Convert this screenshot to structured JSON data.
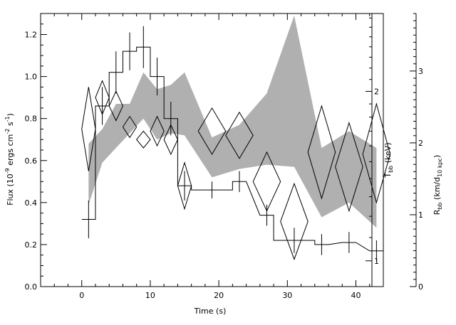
{
  "chart_data": {
    "type": "scatter",
    "title": "",
    "xlabel": "Time (s)",
    "ylabel": "Flux (10^-9 ergs cm^-2 s^-1)",
    "ylabel_parts": [
      "Flux (10",
      "-9",
      " ergs cm",
      "-2",
      " s",
      "-1",
      ")"
    ],
    "xlim": [
      -6,
      44
    ],
    "ylim": [
      0,
      1.3
    ],
    "x_ticks": [
      0,
      10,
      20,
      30,
      40
    ],
    "y_ticks": [
      0.0,
      0.2,
      0.4,
      0.6,
      0.8,
      1.0,
      1.2
    ],
    "y_tick_labels": [
      "0.0",
      "0.2",
      "0.4",
      "0.6",
      "0.8",
      "1.0",
      "1.2"
    ],
    "right_axes": [
      {
        "label": "Tbb (keV)",
        "label_parts": [
          "T",
          "bb",
          " (keV)"
        ],
        "scale": "log",
        "range": [
          0.9,
          2.75
        ],
        "ticks": [
          1,
          2
        ],
        "tick_labels": [
          "1",
          "2"
        ]
      },
      {
        "label": "Rbb (km/d10 kpc)",
        "label_parts": [
          "R",
          "bb",
          " (km/d",
          "10 kpc",
          ")"
        ],
        "scale": "linear",
        "range": [
          0,
          3.8
        ],
        "ticks": [
          0,
          1,
          2,
          3
        ],
        "tick_labels": [
          "0",
          "1",
          "2",
          "3"
        ]
      }
    ],
    "series": [
      {
        "role": "flux",
        "style": "histogram with error bars",
        "x": [
          1,
          3,
          5,
          7,
          9,
          11,
          13,
          15,
          19,
          23,
          27,
          31,
          35,
          39,
          43
        ],
        "xerr": [
          1,
          1,
          1,
          1,
          1,
          1,
          1,
          1,
          3,
          1,
          1,
          3,
          1,
          1,
          1
        ],
        "y": [
          0.32,
          0.86,
          1.02,
          1.12,
          1.14,
          1.0,
          0.8,
          0.48,
          0.46,
          0.5,
          0.34,
          0.22,
          0.2,
          0.21,
          0.17
        ],
        "yerr": [
          0.09,
          0.09,
          0.1,
          0.09,
          0.1,
          0.09,
          0.08,
          0.07,
          0.04,
          0.05,
          0.05,
          0.06,
          0.05,
          0.05,
          0.05
        ]
      },
      {
        "role": "Tbb",
        "style": "diamonds",
        "x": [
          1,
          3,
          5,
          7,
          9,
          11,
          13,
          15,
          19,
          23,
          27,
          31,
          35,
          39,
          43
        ],
        "xerr": [
          1,
          1,
          1,
          1,
          1,
          1,
          1,
          1,
          2,
          2,
          2,
          2,
          2,
          2,
          2
        ],
        "y": [
          0.75,
          0.9,
          0.86,
          0.76,
          0.7,
          0.74,
          0.7,
          0.48,
          0.74,
          0.72,
          0.5,
          0.31,
          0.64,
          0.57,
          0.63
        ],
        "ylow": [
          0.55,
          0.82,
          0.79,
          0.71,
          0.66,
          0.67,
          0.63,
          0.37,
          0.63,
          0.61,
          0.36,
          0.13,
          0.42,
          0.36,
          0.4
        ],
        "yhigh": [
          0.95,
          0.98,
          0.93,
          0.81,
          0.74,
          0.81,
          0.77,
          0.59,
          0.85,
          0.83,
          0.64,
          0.49,
          0.86,
          0.78,
          0.87
        ]
      },
      {
        "role": "Rbb",
        "style": "grey band",
        "x": [
          1,
          3,
          5,
          7,
          9,
          11,
          13,
          15,
          19,
          23,
          27,
          31,
          35,
          39,
          43
        ],
        "ylow": [
          0.39,
          0.59,
          0.66,
          0.73,
          0.8,
          0.7,
          0.73,
          0.72,
          0.52,
          0.56,
          0.58,
          0.57,
          0.33,
          0.4,
          0.28
        ],
        "yhigh": [
          0.68,
          0.75,
          0.87,
          0.87,
          1.02,
          0.94,
          0.96,
          1.02,
          0.71,
          0.77,
          0.92,
          1.29,
          0.66,
          0.74,
          0.66
        ]
      }
    ],
    "colors": {
      "band": "#b0b0b0",
      "lines": "#000000",
      "background": "#ffffff"
    }
  }
}
